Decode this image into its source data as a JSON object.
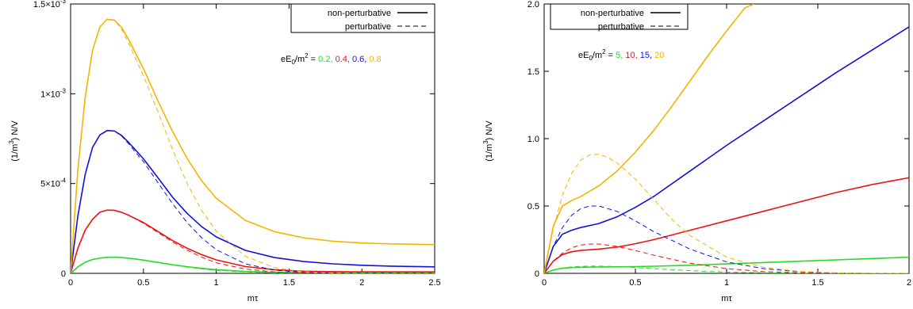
{
  "colors": {
    "green": "#22dd22",
    "red": "#ee1111",
    "blue": "#1111dd",
    "orange": "#f5b400"
  },
  "chart_data": [
    {
      "type": "line",
      "xlabel": "mτ",
      "ylabel": "(1/m³)  N/V",
      "xlim": [
        0,
        2.5
      ],
      "ylim": [
        0,
        0.0015
      ],
      "xticks": [
        {
          "v": 0,
          "label": "0"
        },
        {
          "v": 0.5,
          "label": "0.5"
        },
        {
          "v": 1,
          "label": "1"
        },
        {
          "v": 1.5,
          "label": "1.5"
        },
        {
          "v": 2,
          "label": "2"
        },
        {
          "v": 2.5,
          "label": "2.5"
        }
      ],
      "yticks": [
        {
          "v": 0,
          "label": "0",
          "main": "0",
          "exp": ""
        },
        {
          "v": 0.0005,
          "label": "5×10⁻⁴",
          "main": "5×10",
          "exp": "-4"
        },
        {
          "v": 0.001,
          "label": "1×10⁻³",
          "main": "1×10",
          "exp": "-3"
        },
        {
          "v": 0.0015,
          "label": "1.5×10⁻³",
          "main": "1.5×10",
          "exp": "-3"
        }
      ],
      "legend": {
        "position": "top-right",
        "entries": [
          "non-perturbative",
          "perturbative"
        ]
      },
      "annotation": {
        "prefix": "eE",
        "sub": "0",
        "mid": "/m",
        "sup": "2",
        "eq": " = ",
        "values": [
          {
            "text": "0.2",
            "color": "green"
          },
          {
            "text": "0.4",
            "color": "red"
          },
          {
            "text": "0.6",
            "color": "blue"
          },
          {
            "text": "0.8",
            "color": "orange"
          }
        ]
      },
      "series": [
        {
          "param": "0.2",
          "color": "green",
          "kind": "non-perturbative",
          "x": [
            0,
            0.05,
            0.1,
            0.15,
            0.2,
            0.25,
            0.3,
            0.35,
            0.4,
            0.5,
            0.6,
            0.7,
            0.8,
            0.9,
            1.0,
            1.2,
            1.4,
            1.6,
            1.8,
            2.0,
            2.2,
            2.5
          ],
          "y": [
            0,
            3.6e-05,
            6.2e-05,
            7.7e-05,
            8.5e-05,
            8.9e-05,
            9e-05,
            8.8e-05,
            8.4e-05,
            7.4e-05,
            6.1e-05,
            4.8e-05,
            3.7e-05,
            2.8e-05,
            2e-05,
            1.1e-05,
            6e-06,
            4e-06,
            3e-06,
            2e-06,
            2e-06,
            2e-06
          ]
        },
        {
          "param": "0.2",
          "color": "green",
          "kind": "perturbative",
          "x": [
            0,
            0.05,
            0.1,
            0.15,
            0.2,
            0.25,
            0.3,
            0.35,
            0.4,
            0.5,
            0.6,
            0.7,
            0.8,
            0.9,
            1.0,
            1.2,
            1.4,
            1.6,
            1.8,
            2.0,
            2.2,
            2.5
          ],
          "y": [
            0,
            3.6e-05,
            6.2e-05,
            7.7e-05,
            8.5e-05,
            8.9e-05,
            9e-05,
            8.8e-05,
            8.4e-05,
            7.3e-05,
            6e-05,
            4.7e-05,
            3.5e-05,
            2.5e-05,
            1.7e-05,
            8e-06,
            3e-06,
            1e-06,
            0,
            0,
            0,
            0
          ]
        },
        {
          "param": "0.4",
          "color": "red",
          "kind": "non-perturbative",
          "x": [
            0,
            0.05,
            0.1,
            0.15,
            0.2,
            0.25,
            0.3,
            0.35,
            0.4,
            0.5,
            0.6,
            0.7,
            0.8,
            0.9,
            1.0,
            1.2,
            1.4,
            1.6,
            1.8,
            2.0,
            2.2,
            2.5
          ],
          "y": [
            0,
            0.00014,
            0.00024,
            0.0003,
            0.00034,
            0.000352,
            0.000351,
            0.00034,
            0.000323,
            0.000283,
            0.000233,
            0.000183,
            0.00014,
            0.000104,
            7.5e-05,
            3.8e-05,
            2e-05,
            1.2e-05,
            9e-06,
            8e-06,
            8e-06,
            8e-06
          ]
        },
        {
          "param": "0.4",
          "color": "red",
          "kind": "perturbative",
          "x": [
            0,
            0.05,
            0.1,
            0.15,
            0.2,
            0.25,
            0.3,
            0.35,
            0.4,
            0.5,
            0.6,
            0.7,
            0.8,
            0.9,
            1.0,
            1.2,
            1.4,
            1.6,
            1.8,
            2.0,
            2.2,
            2.5
          ],
          "y": [
            0,
            0.00014,
            0.00024,
            0.0003,
            0.00034,
            0.000352,
            0.000351,
            0.00034,
            0.000323,
            0.000279,
            0.000227,
            0.000175,
            0.000129,
            9e-05,
            5.9e-05,
            2.4e-05,
            8e-06,
            2e-06,
            0,
            0,
            0,
            0
          ]
        },
        {
          "param": "0.6",
          "color": "blue",
          "kind": "non-perturbative",
          "x": [
            0,
            0.05,
            0.1,
            0.15,
            0.2,
            0.25,
            0.3,
            0.35,
            0.4,
            0.5,
            0.6,
            0.7,
            0.8,
            0.9,
            1.0,
            1.2,
            1.4,
            1.6,
            1.8,
            2.0,
            2.2,
            2.5
          ],
          "y": [
            0,
            0.00032,
            0.00055,
            0.0007,
            0.00077,
            0.000795,
            0.000793,
            0.000768,
            0.000728,
            0.000638,
            0.000532,
            0.000424,
            0.000334,
            0.00026,
            0.000203,
            0.000128,
            8.8e-05,
            6.6e-05,
            5.3e-05,
            4.5e-05,
            4e-05,
            3.6e-05
          ]
        },
        {
          "param": "0.6",
          "color": "blue",
          "kind": "perturbative",
          "x": [
            0,
            0.05,
            0.1,
            0.15,
            0.2,
            0.25,
            0.3,
            0.35,
            0.4,
            0.5,
            0.6,
            0.7,
            0.8,
            0.9,
            1.0,
            1.2,
            1.4,
            1.6,
            1.8,
            2.0,
            2.2,
            2.5
          ],
          "y": [
            0,
            0.00032,
            0.00055,
            0.0007,
            0.00077,
            0.000795,
            0.000793,
            0.000765,
            0.00072,
            0.000622,
            0.000505,
            0.000388,
            0.000283,
            0.000198,
            0.000132,
            5.3e-05,
            1.8e-05,
            5e-06,
            1e-06,
            0,
            0,
            0
          ]
        },
        {
          "param": "0.8",
          "color": "orange",
          "kind": "non-perturbative",
          "x": [
            0,
            0.05,
            0.1,
            0.15,
            0.2,
            0.25,
            0.3,
            0.35,
            0.4,
            0.5,
            0.6,
            0.7,
            0.8,
            0.9,
            1.0,
            1.2,
            1.4,
            1.6,
            1.8,
            2.0,
            2.2,
            2.5
          ],
          "y": [
            0,
            0.00058,
            0.00098,
            0.00124,
            0.00137,
            0.001415,
            0.00141,
            0.00137,
            0.0013,
            0.00114,
            0.00096,
            0.00079,
            0.00064,
            0.000515,
            0.000418,
            0.000295,
            0.000232,
            0.000198,
            0.000179,
            0.000169,
            0.000164,
            0.00016
          ]
        },
        {
          "param": "0.8",
          "color": "orange",
          "kind": "perturbative",
          "x": [
            0,
            0.05,
            0.1,
            0.15,
            0.2,
            0.25,
            0.3,
            0.35,
            0.4,
            0.5,
            0.6,
            0.7,
            0.8,
            0.9,
            1.0,
            1.2,
            1.4,
            1.6,
            1.8,
            2.0,
            2.2,
            2.5
          ],
          "y": [
            0,
            0.00058,
            0.00098,
            0.00124,
            0.00137,
            0.001415,
            0.00141,
            0.00136,
            0.00128,
            0.0011,
            0.0009,
            0.00069,
            0.0005,
            0.00035,
            0.000235,
            9.5e-05,
            3.2e-05,
            9e-06,
            2e-06,
            0,
            0,
            0
          ]
        }
      ]
    },
    {
      "type": "line",
      "xlabel": "mτ",
      "ylabel": "(1/m³)  N/V",
      "xlim": [
        0,
        2
      ],
      "ylim": [
        0,
        2
      ],
      "xticks": [
        {
          "v": 0,
          "label": "0"
        },
        {
          "v": 0.5,
          "label": "0.5"
        },
        {
          "v": 1,
          "label": "1"
        },
        {
          "v": 1.5,
          "label": "1.5"
        },
        {
          "v": 2,
          "label": "2"
        }
      ],
      "yticks": [
        {
          "v": 0,
          "label": "0",
          "main": "0",
          "exp": ""
        },
        {
          "v": 0.5,
          "label": "0.5",
          "main": "0.5",
          "exp": ""
        },
        {
          "v": 1,
          "label": "1.0",
          "main": "1.0",
          "exp": ""
        },
        {
          "v": 1.5,
          "label": "1.5",
          "main": "1.5",
          "exp": ""
        },
        {
          "v": 2,
          "label": "2.0",
          "main": "2.0",
          "exp": ""
        }
      ],
      "legend": {
        "position": "top-right",
        "entries": [
          "non-perturbative",
          "perturbative"
        ]
      },
      "annotation": {
        "prefix": "eE",
        "sub": "0",
        "mid": "/m",
        "sup": "2",
        "eq": " = ",
        "values": [
          {
            "text": "5",
            "color": "green"
          },
          {
            "text": "10",
            "color": "red"
          },
          {
            "text": "15",
            "color": "blue"
          },
          {
            "text": "20",
            "color": "orange"
          }
        ]
      },
      "series": [
        {
          "param": "5",
          "color": "green",
          "kind": "non-perturbative",
          "x": [
            0,
            0.05,
            0.1,
            0.15,
            0.2,
            0.3,
            0.4,
            0.5,
            0.6,
            0.8,
            1.0,
            1.2,
            1.4,
            1.6,
            1.8,
            2.0
          ],
          "y": [
            0,
            0.025,
            0.038,
            0.043,
            0.045,
            0.047,
            0.048,
            0.05,
            0.053,
            0.06,
            0.07,
            0.08,
            0.09,
            0.1,
            0.11,
            0.12
          ]
        },
        {
          "param": "5",
          "color": "green",
          "kind": "perturbative",
          "x": [
            0,
            0.05,
            0.1,
            0.15,
            0.2,
            0.25,
            0.3,
            0.4,
            0.5,
            0.6,
            0.8,
            1.0,
            1.2,
            1.4,
            1.6,
            1.8,
            2.0
          ],
          "y": [
            0,
            0.025,
            0.04,
            0.048,
            0.052,
            0.054,
            0.054,
            0.05,
            0.043,
            0.035,
            0.02,
            0.009,
            0.004,
            0.001,
            0,
            0,
            0
          ]
        },
        {
          "param": "10",
          "color": "red",
          "kind": "non-perturbative",
          "x": [
            0,
            0.05,
            0.1,
            0.15,
            0.2,
            0.3,
            0.4,
            0.5,
            0.6,
            0.8,
            1.0,
            1.2,
            1.4,
            1.6,
            1.8,
            2.0
          ],
          "y": [
            0,
            0.09,
            0.14,
            0.16,
            0.17,
            0.18,
            0.195,
            0.22,
            0.25,
            0.32,
            0.39,
            0.46,
            0.53,
            0.6,
            0.66,
            0.71
          ]
        },
        {
          "param": "10",
          "color": "red",
          "kind": "perturbative",
          "x": [
            0,
            0.05,
            0.1,
            0.15,
            0.2,
            0.25,
            0.3,
            0.4,
            0.5,
            0.6,
            0.8,
            1.0,
            1.2,
            1.4,
            1.6,
            1.8,
            2.0
          ],
          "y": [
            0,
            0.09,
            0.15,
            0.19,
            0.21,
            0.218,
            0.218,
            0.2,
            0.17,
            0.135,
            0.075,
            0.035,
            0.013,
            0.004,
            0.001,
            0,
            0
          ]
        },
        {
          "param": "15",
          "color": "blue",
          "kind": "non-perturbative",
          "x": [
            0,
            0.05,
            0.1,
            0.15,
            0.2,
            0.3,
            0.4,
            0.5,
            0.6,
            0.8,
            1.0,
            1.2,
            1.4,
            1.6,
            1.8,
            2.0
          ],
          "y": [
            0,
            0.2,
            0.29,
            0.32,
            0.34,
            0.37,
            0.42,
            0.49,
            0.57,
            0.76,
            0.95,
            1.13,
            1.31,
            1.49,
            1.66,
            1.83
          ]
        },
        {
          "param": "15",
          "color": "blue",
          "kind": "perturbative",
          "x": [
            0,
            0.05,
            0.1,
            0.15,
            0.2,
            0.25,
            0.3,
            0.4,
            0.5,
            0.6,
            0.8,
            1.0,
            1.2,
            1.4,
            1.6,
            1.8,
            2.0
          ],
          "y": [
            0,
            0.2,
            0.34,
            0.43,
            0.48,
            0.5,
            0.5,
            0.46,
            0.39,
            0.31,
            0.18,
            0.085,
            0.035,
            0.012,
            0.003,
            0,
            0
          ]
        },
        {
          "param": "20",
          "color": "orange",
          "kind": "non-perturbative",
          "x": [
            0,
            0.05,
            0.1,
            0.15,
            0.2,
            0.3,
            0.4,
            0.5,
            0.6,
            0.7,
            0.8,
            0.9,
            1.0,
            1.1,
            1.15
          ],
          "y": [
            0,
            0.35,
            0.5,
            0.54,
            0.57,
            0.65,
            0.76,
            0.9,
            1.06,
            1.24,
            1.43,
            1.62,
            1.8,
            1.97,
            2.0
          ]
        },
        {
          "param": "20",
          "color": "orange",
          "kind": "perturbative",
          "x": [
            0,
            0.05,
            0.1,
            0.15,
            0.2,
            0.25,
            0.3,
            0.35,
            0.4,
            0.5,
            0.6,
            0.7,
            0.8,
            1.0,
            1.2,
            1.4,
            1.6,
            1.8,
            2.0
          ],
          "y": [
            0,
            0.33,
            0.58,
            0.74,
            0.84,
            0.88,
            0.885,
            0.86,
            0.82,
            0.7,
            0.55,
            0.4,
            0.28,
            0.12,
            0.045,
            0.014,
            0.004,
            0,
            0
          ]
        }
      ]
    }
  ]
}
